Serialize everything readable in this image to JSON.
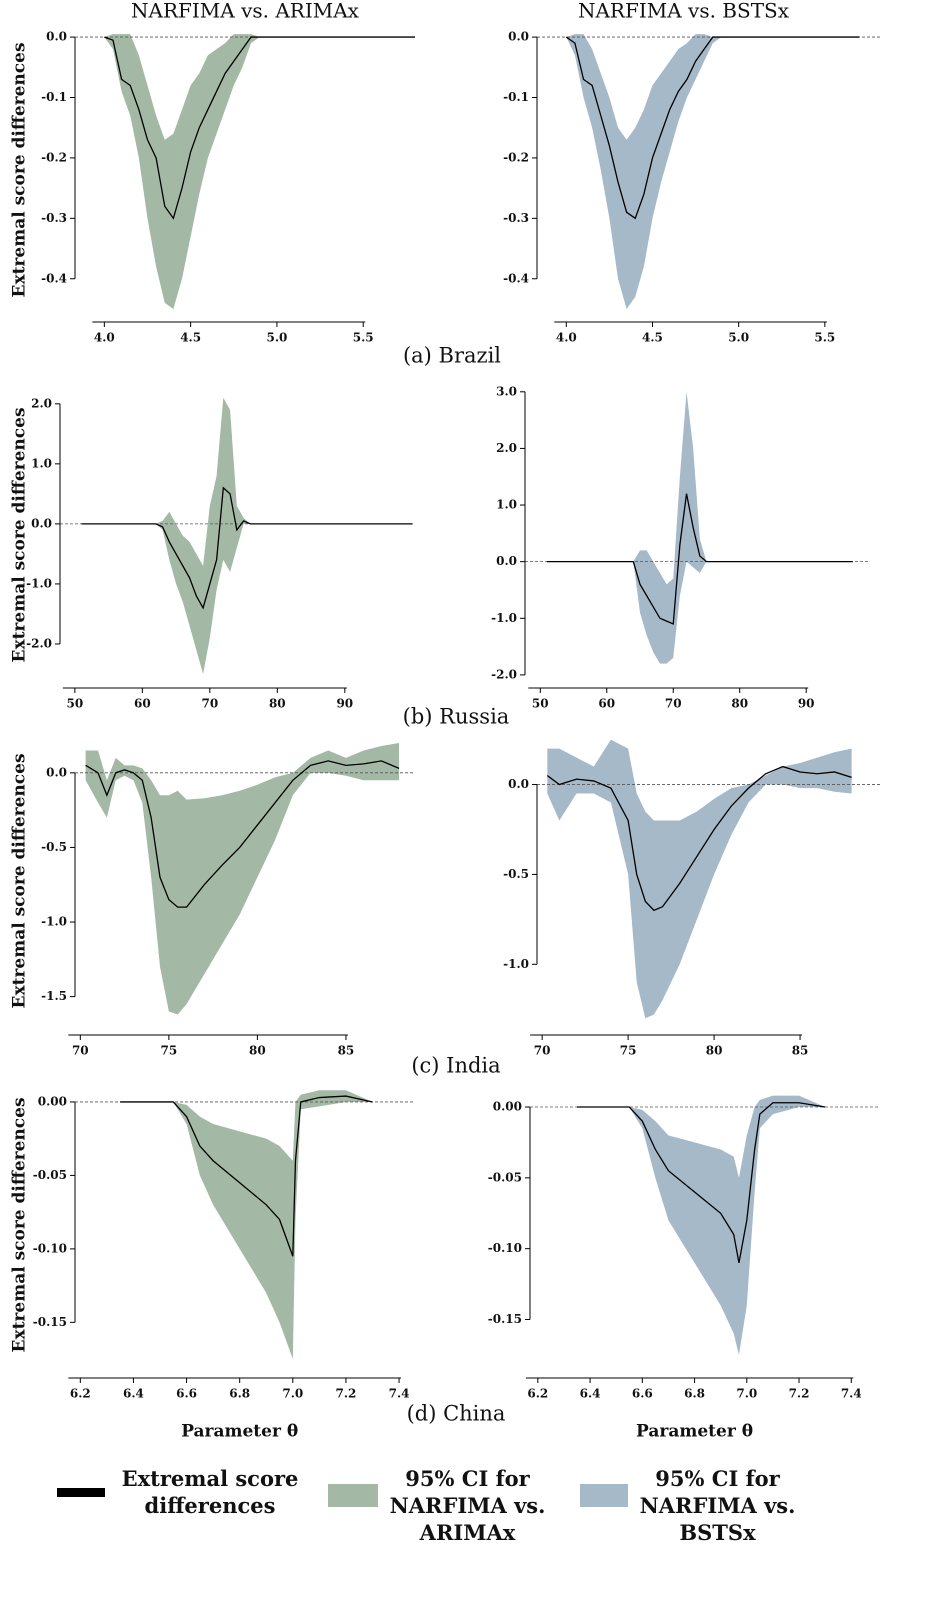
{
  "captions": [
    "(a) Brazil",
    "(b) Russia",
    "(c) India",
    "(d) China"
  ],
  "chart_data": [
    {
      "type": "line",
      "title": "NARFIMA vs. ARIMAx",
      "ylabel": "Extremal score differences",
      "zero_line": true,
      "x": [
        4.0,
        4.05,
        4.1,
        4.15,
        4.2,
        4.25,
        4.3,
        4.35,
        4.4,
        4.45,
        4.5,
        4.55,
        4.6,
        4.65,
        4.7,
        4.75,
        4.8,
        4.85,
        4.9,
        5.8
      ],
      "series": [
        {
          "name": "Extremal score differences",
          "color": "#000000",
          "values": [
            0,
            -0.005,
            -0.07,
            -0.08,
            -0.12,
            -0.17,
            -0.2,
            -0.28,
            -0.3,
            -0.25,
            -0.19,
            -0.15,
            -0.12,
            -0.09,
            -0.06,
            -0.04,
            -0.02,
            0,
            0,
            0
          ]
        },
        {
          "name": "95% CI for NARFIMA vs. ARIMAx",
          "color": "#a3b9a5",
          "upper": [
            0,
            0.005,
            0.005,
            0.005,
            -0.03,
            -0.08,
            -0.13,
            -0.17,
            -0.16,
            -0.12,
            -0.08,
            -0.06,
            -0.03,
            -0.02,
            -0.01,
            0.005,
            0.005,
            0.005,
            0,
            0
          ],
          "lower": [
            0,
            -0.02,
            -0.09,
            -0.13,
            -0.2,
            -0.3,
            -0.38,
            -0.44,
            -0.45,
            -0.4,
            -0.33,
            -0.26,
            -0.2,
            -0.16,
            -0.12,
            -0.08,
            -0.05,
            -0.01,
            0,
            0
          ]
        }
      ],
      "xlim": [
        3.83,
        5.8
      ],
      "xticks": [
        {
          "value": 4.0,
          "label": "4.0"
        },
        4.5,
        {
          "value": 5.0,
          "label": "5.0"
        },
        5.5
      ],
      "ylim": [
        -0.46,
        0.02
      ],
      "yticks": [
        {
          "value": 0.0,
          "label": "0.0"
        },
        -0.1,
        -0.2,
        -0.3,
        -0.4
      ]
    },
    {
      "type": "line",
      "title": "NARFIMA vs. BSTSx",
      "zero_line": true,
      "x": [
        4.0,
        4.05,
        4.1,
        4.15,
        4.2,
        4.25,
        4.3,
        4.35,
        4.4,
        4.45,
        4.5,
        4.55,
        4.6,
        4.65,
        4.7,
        4.75,
        4.8,
        4.85,
        4.9,
        5.7
      ],
      "series": [
        {
          "name": "Extremal score differences",
          "color": "#000000",
          "values": [
            0,
            -0.01,
            -0.07,
            -0.08,
            -0.13,
            -0.18,
            -0.24,
            -0.29,
            -0.3,
            -0.26,
            -0.2,
            -0.16,
            -0.12,
            -0.09,
            -0.07,
            -0.04,
            -0.02,
            0,
            0,
            0
          ]
        },
        {
          "name": "95% CI for NARFIMA vs. BSTSx",
          "color": "#a6b9c8",
          "upper": [
            0,
            0.005,
            0.005,
            -0.02,
            -0.06,
            -0.1,
            -0.15,
            -0.17,
            -0.15,
            -0.12,
            -0.08,
            -0.06,
            -0.04,
            -0.02,
            -0.01,
            0.005,
            0.005,
            0,
            0,
            0
          ],
          "lower": [
            0,
            -0.03,
            -0.1,
            -0.15,
            -0.22,
            -0.3,
            -0.4,
            -0.45,
            -0.43,
            -0.38,
            -0.3,
            -0.24,
            -0.19,
            -0.14,
            -0.1,
            -0.07,
            -0.04,
            -0.01,
            0,
            0
          ]
        }
      ],
      "xlim": [
        3.83,
        5.82
      ],
      "xticks": [
        {
          "value": 4.0,
          "label": "4.0"
        },
        4.5,
        {
          "value": 5.0,
          "label": "5.0"
        },
        5.5
      ],
      "ylim": [
        -0.46,
        0.02
      ],
      "yticks": [
        {
          "value": 0.0,
          "label": "0.0"
        },
        -0.1,
        -0.2,
        -0.3,
        -0.4
      ]
    },
    {
      "type": "line",
      "ylabel": "Extremal score differences",
      "zero_line": true,
      "x": [
        51,
        62,
        63,
        64,
        65,
        66,
        67,
        68,
        69,
        70,
        71,
        72,
        73,
        74,
        75,
        76,
        100
      ],
      "series": [
        {
          "name": "Extremal score differences",
          "color": "#000000",
          "values": [
            0,
            0,
            -0.05,
            -0.3,
            -0.5,
            -0.7,
            -0.9,
            -1.2,
            -1.4,
            -1.0,
            -0.6,
            0.6,
            0.5,
            -0.1,
            0.05,
            0,
            0
          ]
        },
        {
          "name": "95% CI for NARFIMA vs. ARIMAx",
          "color": "#a3b9a5",
          "upper": [
            0,
            0,
            0.05,
            0.2,
            0,
            -0.2,
            -0.3,
            -0.5,
            -0.7,
            0.3,
            0.8,
            2.1,
            1.9,
            0.3,
            0.1,
            0,
            0
          ],
          "lower": [
            0,
            0,
            -0.1,
            -0.6,
            -1.0,
            -1.3,
            -1.7,
            -2.1,
            -2.5,
            -1.9,
            -1.1,
            -0.6,
            -0.8,
            -0.4,
            0,
            0,
            0
          ]
        }
      ],
      "xlim": [
        47.8,
        100.4
      ],
      "xticks": [
        50,
        60,
        70,
        80,
        90
      ],
      "ylim": [
        -2.6,
        2.23
      ],
      "yticks": [
        {
          "value": 2.0,
          "label": "2.0"
        },
        {
          "value": 1.0,
          "label": "1.0"
        },
        {
          "value": 0.0,
          "label": "0.0"
        },
        {
          "value": -1.0,
          "label": "-1.0"
        },
        {
          "value": -2.0,
          "label": "-2.0"
        }
      ]
    },
    {
      "type": "line",
      "zero_line": true,
      "x": [
        51,
        64,
        65,
        66,
        67,
        68,
        69,
        70,
        71,
        72,
        73,
        74,
        75,
        97
      ],
      "series": [
        {
          "name": "Extremal score differences",
          "color": "#000000",
          "values": [
            0,
            0,
            -0.4,
            -0.6,
            -0.8,
            -1.0,
            -1.05,
            -1.1,
            0.3,
            1.2,
            0.6,
            0.1,
            0,
            0
          ]
        },
        {
          "name": "95% CI for NARFIMA vs. BSTSx",
          "color": "#a6b9c8",
          "upper": [
            0,
            0,
            0.2,
            0.2,
            0,
            -0.2,
            -0.4,
            -0.3,
            1.5,
            3.0,
            2.0,
            0.4,
            0,
            0
          ],
          "lower": [
            0,
            0,
            -0.9,
            -1.3,
            -1.6,
            -1.8,
            -1.8,
            -1.7,
            -0.6,
            0,
            -0.1,
            -0.2,
            0,
            0
          ]
        }
      ],
      "xlim": [
        47.7,
        99.6
      ],
      "xticks": [
        50,
        60,
        70,
        80,
        90
      ],
      "ylim": [
        -2.09,
        3.12
      ],
      "yticks": [
        {
          "value": 3.0,
          "label": "3.0"
        },
        {
          "value": 2.0,
          "label": "2.0"
        },
        {
          "value": 1.0,
          "label": "1.0"
        },
        {
          "value": 0.0,
          "label": "0.0"
        },
        {
          "value": -1.0,
          "label": "-1.0"
        },
        {
          "value": -2.0,
          "label": "-2.0"
        }
      ]
    },
    {
      "type": "line",
      "ylabel": "Extremal score differences",
      "zero_line": true,
      "x": [
        70.3,
        71,
        71.5,
        72,
        72.5,
        73,
        73.5,
        74,
        74.5,
        75,
        75.5,
        76,
        77,
        78,
        79,
        80,
        81,
        82,
        83,
        84,
        85,
        86,
        87,
        88
      ],
      "series": [
        {
          "name": "Extremal score differences",
          "color": "#000000",
          "values": [
            0.05,
            0.0,
            -0.15,
            0.0,
            0.02,
            0.0,
            -0.05,
            -0.3,
            -0.7,
            -0.85,
            -0.9,
            -0.9,
            -0.75,
            -0.62,
            -0.5,
            -0.35,
            -0.2,
            -0.05,
            0.05,
            0.08,
            0.05,
            0.06,
            0.08,
            0.03
          ]
        },
        {
          "name": "95% CI for NARFIMA vs. ARIMAx",
          "color": "#a3b9a5",
          "upper": [
            0.15,
            0.15,
            -0.05,
            0.1,
            0.05,
            0.05,
            0.03,
            -0.05,
            -0.15,
            -0.15,
            -0.12,
            -0.18,
            -0.17,
            -0.15,
            -0.12,
            -0.08,
            -0.03,
            0.0,
            0.1,
            0.15,
            0.1,
            0.15,
            0.18,
            0.2
          ],
          "lower": [
            -0.05,
            -0.2,
            -0.3,
            -0.05,
            -0.02,
            -0.05,
            -0.2,
            -0.7,
            -1.3,
            -1.6,
            -1.62,
            -1.55,
            -1.35,
            -1.15,
            -0.95,
            -0.7,
            -0.45,
            -0.15,
            0.0,
            0.0,
            -0.02,
            -0.05,
            -0.05,
            -0.05
          ]
        }
      ],
      "xlim": [
        69.7,
        88.9
      ],
      "xticks": [
        70,
        75,
        80,
        85
      ],
      "ylim": [
        -1.67,
        0.22
      ],
      "yticks": [
        {
          "value": 0.0,
          "label": "0.0"
        },
        -0.5,
        {
          "value": -1.0,
          "label": "-1.0"
        },
        -1.5
      ]
    },
    {
      "type": "line",
      "zero_line": true,
      "x": [
        70.3,
        71,
        72,
        73,
        74,
        75,
        75.5,
        76,
        76.5,
        77,
        78,
        79,
        80,
        81,
        82,
        83,
        84,
        85,
        86,
        87,
        88
      ],
      "series": [
        {
          "name": "Extremal score differences",
          "color": "#000000",
          "values": [
            0.05,
            0.0,
            0.03,
            0.02,
            -0.02,
            -0.2,
            -0.5,
            -0.65,
            -0.7,
            -0.68,
            -0.55,
            -0.4,
            -0.25,
            -0.12,
            -0.02,
            0.06,
            0.1,
            0.07,
            0.06,
            0.07,
            0.04
          ]
        },
        {
          "name": "95% CI for NARFIMA vs. BSTSx",
          "color": "#a6b9c8",
          "upper": [
            0.2,
            0.2,
            0.15,
            0.1,
            0.25,
            0.2,
            -0.05,
            -0.15,
            -0.2,
            -0.2,
            -0.2,
            -0.15,
            -0.08,
            -0.02,
            0.0,
            0.05,
            0.1,
            0.12,
            0.15,
            0.18,
            0.2
          ],
          "lower": [
            -0.05,
            -0.2,
            -0.05,
            -0.05,
            -0.1,
            -0.5,
            -1.1,
            -1.3,
            -1.28,
            -1.2,
            -1.0,
            -0.75,
            -0.5,
            -0.28,
            -0.1,
            0.0,
            0.0,
            -0.02,
            -0.02,
            -0.04,
            -0.05
          ]
        }
      ],
      "xlim": [
        69.7,
        89.65
      ],
      "xticks": [
        70,
        75,
        80,
        85
      ],
      "ylim": [
        -1.31,
        0.22
      ],
      "yticks": [
        {
          "value": 0.0,
          "label": "0.0"
        },
        -0.5,
        {
          "value": -1.0,
          "label": "-1.0"
        }
      ]
    },
    {
      "type": "line",
      "ylabel": "Extremal score differences",
      "xlabel": "Parameter θ",
      "zero_line": true,
      "x": [
        6.35,
        6.55,
        6.6,
        6.65,
        6.7,
        6.8,
        6.9,
        6.95,
        7.0,
        7.01,
        7.03,
        7.1,
        7.2,
        7.3
      ],
      "series": [
        {
          "name": "Extremal score differences",
          "color": "#000000",
          "values": [
            0,
            0,
            -0.01,
            -0.03,
            -0.04,
            -0.055,
            -0.07,
            -0.08,
            -0.105,
            -0.04,
            0.0,
            0.003,
            0.004,
            0.0
          ]
        },
        {
          "name": "95% CI for NARFIMA vs. ARIMAx",
          "color": "#a3b9a5",
          "upper": [
            0,
            0,
            -0.002,
            -0.01,
            -0.015,
            -0.02,
            -0.025,
            -0.03,
            -0.04,
            0.0,
            0.005,
            0.008,
            0.008,
            0.0
          ],
          "lower": [
            0,
            0,
            -0.015,
            -0.05,
            -0.07,
            -0.1,
            -0.13,
            -0.15,
            -0.175,
            -0.08,
            -0.005,
            -0.003,
            0.0,
            0.0
          ]
        }
      ],
      "xlim": [
        6.18,
        7.46
      ],
      "xticks": [
        6.2,
        6.4,
        6.6,
        6.8,
        {
          "value": 7.0,
          "label": "7.0"
        },
        7.2,
        7.4
      ],
      "ylim": [
        -0.177,
        0.0095
      ],
      "yticks": [
        {
          "value": 0.0,
          "label": "0.00"
        },
        -0.05,
        {
          "value": -0.1,
          "label": "-0.10"
        },
        -0.15
      ]
    },
    {
      "type": "line",
      "xlabel": "Parameter θ",
      "zero_line": true,
      "x": [
        6.35,
        6.55,
        6.6,
        6.65,
        6.7,
        6.8,
        6.9,
        6.95,
        6.97,
        7.0,
        7.03,
        7.05,
        7.1,
        7.2,
        7.3
      ],
      "series": [
        {
          "name": "Extremal score differences",
          "color": "#000000",
          "values": [
            0,
            0,
            -0.01,
            -0.03,
            -0.045,
            -0.06,
            -0.075,
            -0.09,
            -0.11,
            -0.08,
            -0.03,
            -0.005,
            0.003,
            0.003,
            0.0
          ]
        },
        {
          "name": "95% CI for NARFIMA vs. BSTSx",
          "color": "#a6b9c8",
          "upper": [
            0,
            0,
            -0.002,
            -0.01,
            -0.02,
            -0.025,
            -0.03,
            -0.035,
            -0.05,
            -0.02,
            0.0,
            0.005,
            0.008,
            0.008,
            0.0
          ],
          "lower": [
            0,
            0,
            -0.015,
            -0.05,
            -0.08,
            -0.11,
            -0.14,
            -0.16,
            -0.175,
            -0.14,
            -0.06,
            -0.015,
            -0.005,
            0.0,
            0.0
          ]
        }
      ],
      "xlim": [
        6.17,
        7.51
      ],
      "xticks": [
        6.2,
        6.4,
        6.6,
        6.8,
        {
          "value": 7.0,
          "label": "7.0"
        },
        7.2,
        7.4
      ],
      "ylim": [
        -0.18,
        0.012
      ],
      "yticks": [
        {
          "value": 0.0,
          "label": "0.00"
        },
        -0.05,
        {
          "value": -0.1,
          "label": "-0.10"
        },
        -0.15
      ]
    }
  ]
}
